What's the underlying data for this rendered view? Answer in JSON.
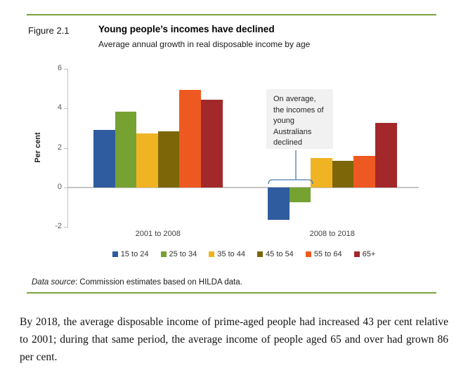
{
  "figure": {
    "label": "Figure 2.1",
    "title": "Young people’s incomes have declined",
    "subtitle": "Average annual growth in real disposable income by age",
    "data_source_label": "Data source",
    "data_source_rest": ": Commission estimates based on HILDA data."
  },
  "chart_data": {
    "type": "bar",
    "title": "Young people’s incomes have declined",
    "subtitle": "Average annual growth in real disposable income by age",
    "categories": [
      "2001 to 2008",
      "2008 to 2018"
    ],
    "series": [
      {
        "name": "15 to 24",
        "color": "#2e5c9e",
        "values": [
          2.9,
          -1.65
        ]
      },
      {
        "name": "25 to 34",
        "color": "#76a232",
        "values": [
          3.85,
          -0.75
        ]
      },
      {
        "name": "35 to 44",
        "color": "#f0b323",
        "values": [
          2.75,
          1.5
        ]
      },
      {
        "name": "45 to 54",
        "color": "#7d6608",
        "values": [
          2.85,
          1.35
        ]
      },
      {
        "name": "55 to 64",
        "color": "#ee5921",
        "values": [
          4.95,
          1.6
        ]
      },
      {
        "name": "65+",
        "color": "#a3282a",
        "values": [
          4.45,
          3.25
        ]
      }
    ],
    "xlabel": "",
    "ylabel": "Per cent",
    "yticks": [
      6,
      4,
      2,
      0,
      -2
    ],
    "ylim": [
      -2,
      6
    ],
    "grid": false,
    "legend_position": "bottom",
    "annotation": "On average, the incomes of young Australians declined"
  },
  "colors": {
    "rule_green": "#7ba33c",
    "axis_gray": "#bfbfbf",
    "annotation_bg": "#f1f1f1",
    "bracket_blue": "#4c7cb4"
  },
  "body_text": "By 2018, the average disposable income of prime-aged people had increased 43 per cent relative to 2001; during that same period, the average income of people aged 65 and over had grown 86 per cent."
}
